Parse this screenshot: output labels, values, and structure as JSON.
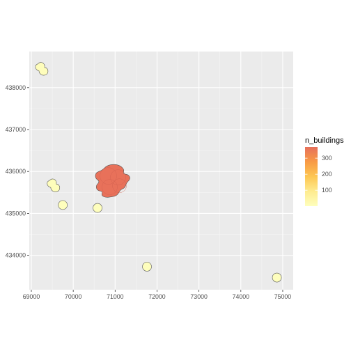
{
  "chart_data": {
    "type": "map",
    "fill_variable": "n_buildings",
    "xlim": [
      68950,
      75250
    ],
    "ylim": [
      433180,
      438860
    ],
    "x_ticks": [
      69000,
      70000,
      71000,
      72000,
      73000,
      74000,
      75000
    ],
    "y_ticks": [
      434000,
      435000,
      436000,
      437000,
      438000
    ],
    "x_tick_labels": [
      "69000",
      "70000",
      "71000",
      "72000",
      "73000",
      "74000",
      "75000"
    ],
    "y_tick_labels": [
      "434000",
      "435000",
      "436000",
      "437000",
      "438000"
    ],
    "grid": true,
    "legend": {
      "title": "n_buildings",
      "position": "right",
      "breaks": [
        100,
        200,
        300
      ],
      "break_labels": [
        "100",
        "200",
        "300"
      ],
      "range": [
        1,
        370
      ],
      "colors": [
        "#fefebd",
        "#fdd16a",
        "#fba946",
        "#f47b47",
        "#e6705c"
      ]
    },
    "clusters": [
      {
        "x": 69250,
        "y": 438430,
        "n_buildings": 3,
        "shape": "blob2"
      },
      {
        "x": 69530,
        "y": 435650,
        "n_buildings": 3,
        "shape": "blob2"
      },
      {
        "x": 69750,
        "y": 435200,
        "n_buildings": 1,
        "shape": "circle"
      },
      {
        "x": 70580,
        "y": 435130,
        "n_buildings": 1,
        "shape": "circle"
      },
      {
        "x": 70970,
        "y": 435760,
        "n_buildings": 360,
        "shape": "large"
      },
      {
        "x": 71760,
        "y": 433730,
        "n_buildings": 1,
        "shape": "circle"
      },
      {
        "x": 74860,
        "y": 433470,
        "n_buildings": 1,
        "shape": "circle"
      }
    ]
  }
}
